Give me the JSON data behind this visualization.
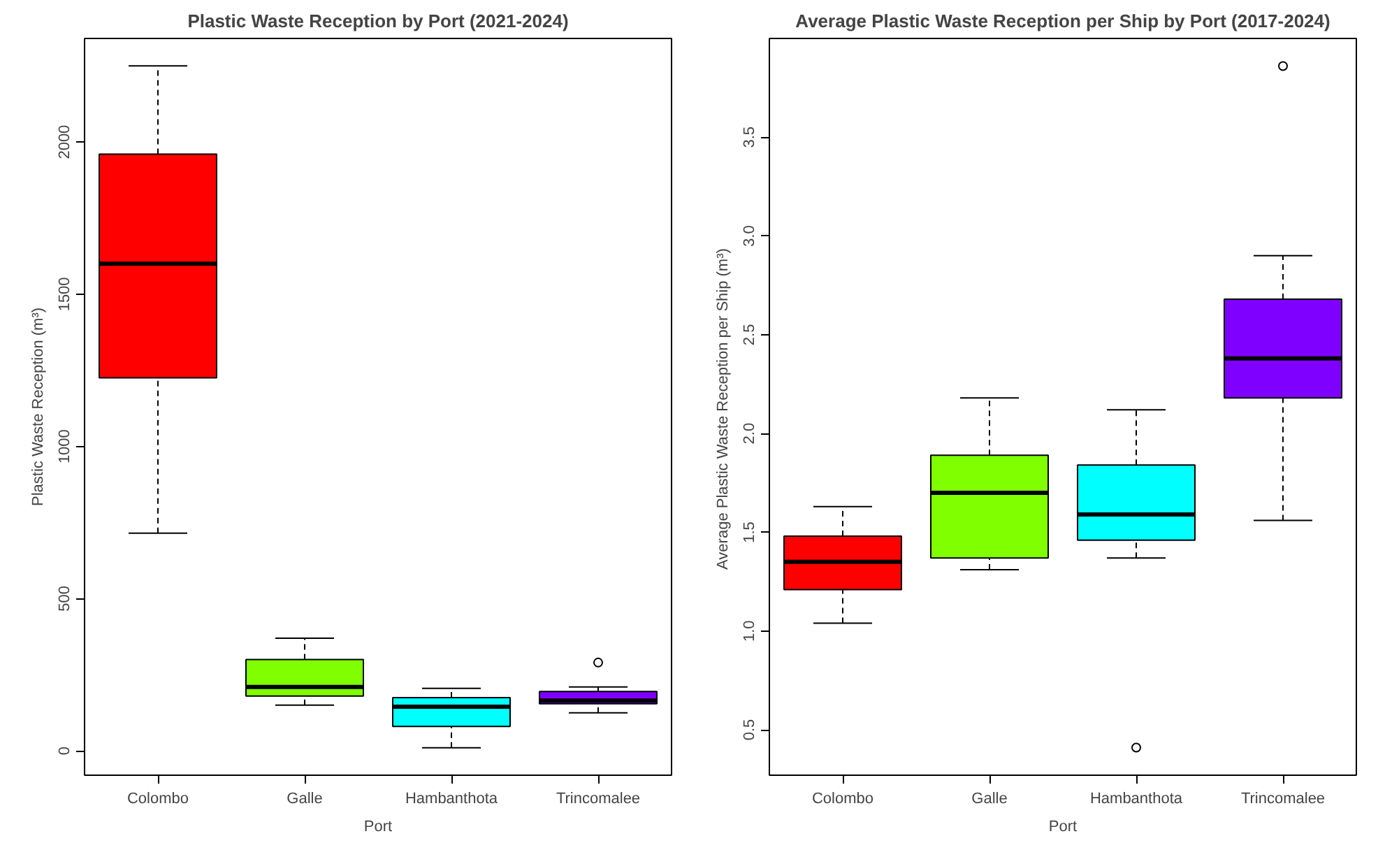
{
  "chart_data": [
    {
      "type": "box",
      "title": "Plastic Waste Reception by Port (2021-2024)",
      "xlabel": "Port",
      "ylabel": "Plastic Waste Reception (m³)",
      "categories": [
        "Colombo",
        "Galle",
        "Hambanthota",
        "Trincomalee"
      ],
      "colors": [
        "#ff0000",
        "#80ff00",
        "#00ffff",
        "#8000ff"
      ],
      "boxes": [
        {
          "low": 715,
          "q1": 1225,
          "median": 1600,
          "q3": 1960,
          "high": 2250
        },
        {
          "low": 150,
          "q1": 180,
          "median": 210,
          "q3": 300,
          "high": 370
        },
        {
          "low": 10,
          "q1": 80,
          "median": 145,
          "q3": 175,
          "high": 205
        },
        {
          "low": 125,
          "q1": 155,
          "median": 165,
          "q3": 195,
          "high": 210,
          "outliers": [
            290
          ]
        }
      ],
      "ylim": [
        -80,
        2340
      ],
      "yticks": [
        0,
        500,
        1000,
        1500,
        2000
      ],
      "marker": "circle"
    },
    {
      "type": "box",
      "title": "Average Plastic Waste Reception per Ship by Port (2017-2024)",
      "xlabel": "Port",
      "ylabel": "Average Plastic Waste Reception per Ship  (m³)",
      "categories": [
        "Colombo",
        "Galle",
        "Hambanthota",
        "Trincomalee"
      ],
      "colors": [
        "#ff0000",
        "#80ff00",
        "#00ffff",
        "#8000ff"
      ],
      "boxes": [
        {
          "low": 1.04,
          "q1": 1.21,
          "median": 1.35,
          "q3": 1.48,
          "high": 1.63
        },
        {
          "low": 1.31,
          "q1": 1.37,
          "median": 1.7,
          "q3": 1.89,
          "high": 2.18
        },
        {
          "low": 1.37,
          "q1": 1.46,
          "median": 1.59,
          "q3": 1.84,
          "high": 2.12,
          "outliers": [
            0.41
          ]
        },
        {
          "low": 1.56,
          "q1": 2.18,
          "median": 2.38,
          "q3": 2.68,
          "high": 2.9,
          "outliers": [
            3.86
          ]
        }
      ],
      "ylim": [
        0.27,
        4.0
      ],
      "yticks": [
        0.5,
        {
          "value": 1,
          "label": "1.0"
        },
        1.5,
        {
          "value": 2,
          "label": "2.0"
        },
        2.5,
        {
          "value": 3,
          "label": "3.0"
        },
        3.5
      ],
      "marker": "circle"
    }
  ]
}
